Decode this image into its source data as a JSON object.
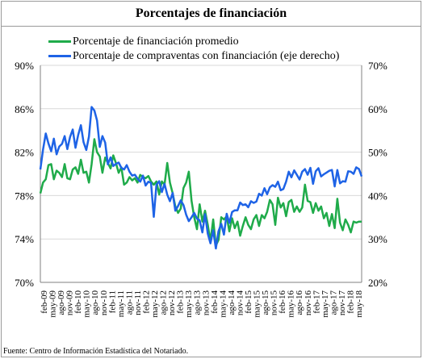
{
  "title": "Porcentajes de financiación",
  "source": "Fuente: Centro de Información Estadística del Notariado.",
  "chart_data": {
    "type": "line",
    "x_labels": [
      "feb-09",
      "may-09",
      "ago-09",
      "nov-09",
      "feb-10",
      "may-10",
      "ago-10",
      "nov-10",
      "feb-11",
      "may-11",
      "ago-11",
      "nov-11",
      "feb-12",
      "may-12",
      "ago-12",
      "nov-12",
      "feb-13",
      "may-13",
      "ago-13",
      "nov-13",
      "feb-14",
      "may-14",
      "ago-14",
      "nov-14",
      "feb-15",
      "may-15",
      "ago-15",
      "nov-15",
      "feb-16",
      "may-16",
      "ago-16",
      "nov-16",
      "feb-17",
      "may-17",
      "ago-17",
      "nov-17",
      "feb-18",
      "may-18"
    ],
    "left_axis": {
      "ylim": [
        70,
        90
      ],
      "ticks": [
        "70%",
        "74%",
        "78%",
        "82%",
        "86%",
        "90%"
      ]
    },
    "right_axis": {
      "ylim": [
        20,
        70
      ],
      "ticks": [
        "20%",
        "30%",
        "40%",
        "50%",
        "60%",
        "70%"
      ]
    },
    "grid": "horizontal",
    "legend_position": "top",
    "series": [
      {
        "name": "Porcentaje de financiación promedio",
        "axis": "left",
        "color": "#1fab4a",
        "values": [
          78.2,
          79.2,
          79.5,
          80.8,
          80.9,
          79.5,
          80.3,
          80.1,
          79.7,
          80.9,
          79.6,
          79.5,
          80.4,
          80.6,
          80.0,
          81.3,
          80.1,
          80.2,
          79.2,
          80.9,
          83.2,
          82.0,
          81.6,
          80.1,
          81.5,
          81.0,
          80.5,
          81.7,
          81.0,
          80.1,
          80.6,
          79.0,
          79.2,
          79.7,
          79.4,
          79.6,
          79.2,
          79.9,
          79.7,
          79.6,
          79.8,
          79.3,
          79.0,
          79.3,
          78.1,
          79.3,
          79.0,
          81.0,
          79.2,
          78.2,
          77.0,
          76.4,
          76.8,
          78.7,
          79.2,
          80.2,
          77.5,
          76.0,
          74.9,
          77.2,
          75.6,
          76.6,
          75.3,
          73.8,
          75.8,
          73.4,
          73.9,
          76.0,
          75.8,
          76.1,
          74.7,
          75.9,
          75.0,
          75.6,
          74.3,
          75.2,
          76.0,
          75.3,
          74.9,
          75.8,
          76.2,
          75.2,
          76.2,
          75.9,
          76.5,
          77.6,
          77.2,
          75.3,
          77.8,
          76.9,
          77.3,
          76.1,
          77.4,
          77.6,
          76.5,
          77.0,
          76.5,
          76.9,
          79.0,
          77.5,
          77.4,
          76.4,
          77.3,
          76.6,
          77.0,
          75.9,
          76.4,
          75.2,
          76.3,
          75.0,
          77.7,
          75.5,
          74.8,
          75.8,
          75.3,
          74.6,
          75.6,
          75.5,
          75.6,
          75.6
        ]
      },
      {
        "name": "Porcentaje de compraventas con financiación (eje derecho)",
        "axis": "right",
        "color": "#1e63e6",
        "values": [
          46.0,
          50.6,
          54.3,
          52.0,
          50.2,
          53.1,
          49.5,
          51.3,
          51.9,
          53.7,
          50.7,
          53.5,
          55.2,
          51.0,
          53.9,
          56.2,
          52.3,
          50.5,
          53.6,
          60.4,
          59.6,
          57.3,
          51.2,
          53.7,
          52.2,
          47.2,
          48.8,
          46.8,
          47.3,
          47.6,
          46.4,
          46.0,
          47.0,
          45.5,
          44.6,
          44.8,
          43.9,
          43.2,
          44.6,
          42.3,
          43.2,
          42.9,
          35.1,
          42.5,
          43.3,
          40.8,
          42.7,
          40.2,
          38.7,
          40.6,
          36.5,
          37.6,
          38.9,
          37.8,
          35.6,
          34.1,
          35.0,
          36.0,
          34.7,
          34.3,
          31.5,
          35.7,
          31.2,
          29.0,
          32.0,
          27.8,
          31.8,
          33.5,
          31.0,
          35.8,
          33.7,
          36.2,
          36.6,
          36.6,
          38.4,
          37.8,
          38.0,
          37.3,
          38.7,
          38.3,
          38.6,
          40.4,
          40.0,
          41.7,
          40.3,
          41.9,
          42.4,
          42.0,
          43.2,
          41.2,
          41.5,
          43.2,
          45.5,
          44.2,
          45.8,
          44.8,
          43.7,
          45.5,
          46.1,
          44.8,
          46.4,
          42.7,
          45.6,
          46.3,
          44.4,
          44.9,
          45.3,
          45.7,
          45.9,
          42.1,
          45.9,
          42.8,
          43.3,
          43.2,
          45.6,
          45.5,
          45.0,
          46.5,
          46.1,
          44.4
        ]
      }
    ]
  }
}
